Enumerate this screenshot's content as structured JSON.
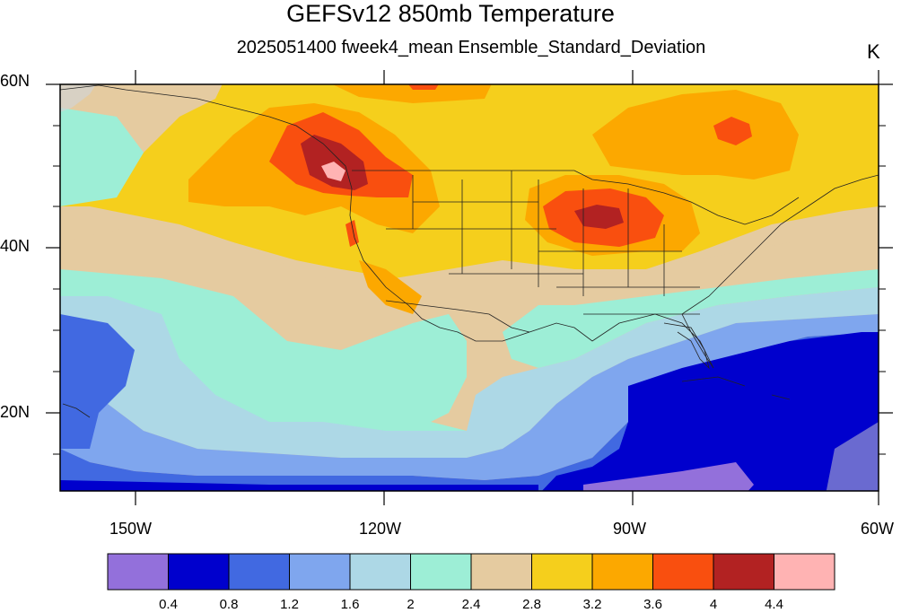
{
  "title": "GEFSv12 850mb Temperature",
  "subtitle": "2025051400 fweek4_mean Ensemble_Standard_Deviation",
  "units": "K",
  "lat_labels": [
    "60N",
    "40N",
    "20N"
  ],
  "lon_labels": [
    "150W",
    "120W",
    "90W",
    "60W"
  ],
  "colorbar": {
    "colors": [
      "#9370db",
      "#0000cd",
      "#4169e1",
      "#7fa6ee",
      "#add8e6",
      "#9deed6",
      "#e5cba0",
      "#f5cf1c",
      "#fca800",
      "#f94f0f",
      "#b22222",
      "#ffb3b3"
    ],
    "labels": [
      "0.4",
      "0.8",
      "1.2",
      "1.6",
      "2",
      "2.4",
      "2.8",
      "3.2",
      "3.6",
      "4",
      "4.4"
    ]
  },
  "map": {
    "extent": {
      "lon": [
        -160,
        -60
      ],
      "lat": [
        10,
        60
      ]
    },
    "projection": "cylindrical-equidistant",
    "fill": "contours"
  }
}
